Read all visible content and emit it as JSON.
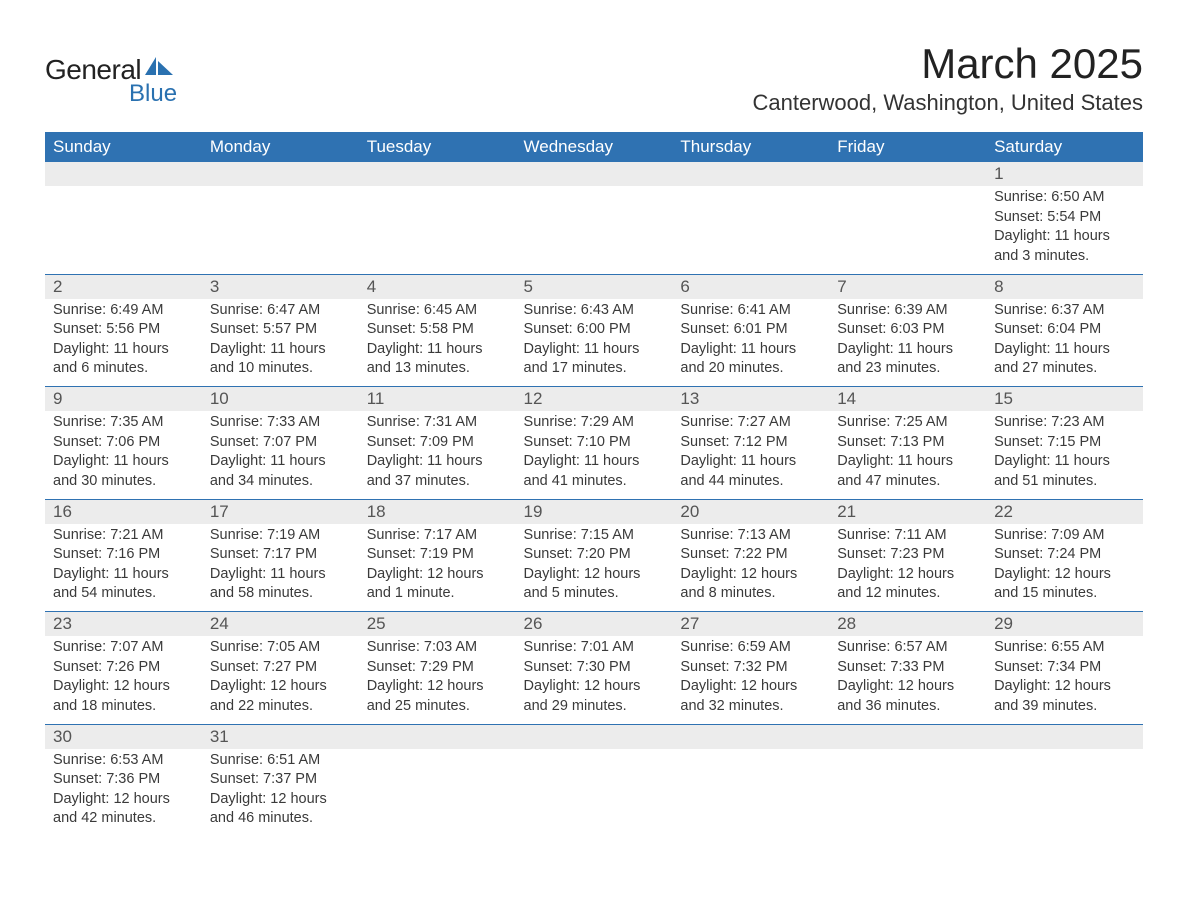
{
  "logo": {
    "text1": "General",
    "text2": "Blue",
    "shape_color": "#2a71b0"
  },
  "title": "March 2025",
  "location": "Canterwood, Washington, United States",
  "theme": {
    "header_bg": "#2f72b2",
    "header_text": "#ffffff",
    "daynum_bg": "#ececec",
    "border": "#2f72b2"
  },
  "weekdays": [
    "Sunday",
    "Monday",
    "Tuesday",
    "Wednesday",
    "Thursday",
    "Friday",
    "Saturday"
  ],
  "weeks": [
    [
      null,
      null,
      null,
      null,
      null,
      null,
      {
        "n": "1",
        "sr": "Sunrise: 6:50 AM",
        "ss": "Sunset: 5:54 PM",
        "d1": "Daylight: 11 hours",
        "d2": "and 3 minutes."
      }
    ],
    [
      {
        "n": "2",
        "sr": "Sunrise: 6:49 AM",
        "ss": "Sunset: 5:56 PM",
        "d1": "Daylight: 11 hours",
        "d2": "and 6 minutes."
      },
      {
        "n": "3",
        "sr": "Sunrise: 6:47 AM",
        "ss": "Sunset: 5:57 PM",
        "d1": "Daylight: 11 hours",
        "d2": "and 10 minutes."
      },
      {
        "n": "4",
        "sr": "Sunrise: 6:45 AM",
        "ss": "Sunset: 5:58 PM",
        "d1": "Daylight: 11 hours",
        "d2": "and 13 minutes."
      },
      {
        "n": "5",
        "sr": "Sunrise: 6:43 AM",
        "ss": "Sunset: 6:00 PM",
        "d1": "Daylight: 11 hours",
        "d2": "and 17 minutes."
      },
      {
        "n": "6",
        "sr": "Sunrise: 6:41 AM",
        "ss": "Sunset: 6:01 PM",
        "d1": "Daylight: 11 hours",
        "d2": "and 20 minutes."
      },
      {
        "n": "7",
        "sr": "Sunrise: 6:39 AM",
        "ss": "Sunset: 6:03 PM",
        "d1": "Daylight: 11 hours",
        "d2": "and 23 minutes."
      },
      {
        "n": "8",
        "sr": "Sunrise: 6:37 AM",
        "ss": "Sunset: 6:04 PM",
        "d1": "Daylight: 11 hours",
        "d2": "and 27 minutes."
      }
    ],
    [
      {
        "n": "9",
        "sr": "Sunrise: 7:35 AM",
        "ss": "Sunset: 7:06 PM",
        "d1": "Daylight: 11 hours",
        "d2": "and 30 minutes."
      },
      {
        "n": "10",
        "sr": "Sunrise: 7:33 AM",
        "ss": "Sunset: 7:07 PM",
        "d1": "Daylight: 11 hours",
        "d2": "and 34 minutes."
      },
      {
        "n": "11",
        "sr": "Sunrise: 7:31 AM",
        "ss": "Sunset: 7:09 PM",
        "d1": "Daylight: 11 hours",
        "d2": "and 37 minutes."
      },
      {
        "n": "12",
        "sr": "Sunrise: 7:29 AM",
        "ss": "Sunset: 7:10 PM",
        "d1": "Daylight: 11 hours",
        "d2": "and 41 minutes."
      },
      {
        "n": "13",
        "sr": "Sunrise: 7:27 AM",
        "ss": "Sunset: 7:12 PM",
        "d1": "Daylight: 11 hours",
        "d2": "and 44 minutes."
      },
      {
        "n": "14",
        "sr": "Sunrise: 7:25 AM",
        "ss": "Sunset: 7:13 PM",
        "d1": "Daylight: 11 hours",
        "d2": "and 47 minutes."
      },
      {
        "n": "15",
        "sr": "Sunrise: 7:23 AM",
        "ss": "Sunset: 7:15 PM",
        "d1": "Daylight: 11 hours",
        "d2": "and 51 minutes."
      }
    ],
    [
      {
        "n": "16",
        "sr": "Sunrise: 7:21 AM",
        "ss": "Sunset: 7:16 PM",
        "d1": "Daylight: 11 hours",
        "d2": "and 54 minutes."
      },
      {
        "n": "17",
        "sr": "Sunrise: 7:19 AM",
        "ss": "Sunset: 7:17 PM",
        "d1": "Daylight: 11 hours",
        "d2": "and 58 minutes."
      },
      {
        "n": "18",
        "sr": "Sunrise: 7:17 AM",
        "ss": "Sunset: 7:19 PM",
        "d1": "Daylight: 12 hours",
        "d2": "and 1 minute."
      },
      {
        "n": "19",
        "sr": "Sunrise: 7:15 AM",
        "ss": "Sunset: 7:20 PM",
        "d1": "Daylight: 12 hours",
        "d2": "and 5 minutes."
      },
      {
        "n": "20",
        "sr": "Sunrise: 7:13 AM",
        "ss": "Sunset: 7:22 PM",
        "d1": "Daylight: 12 hours",
        "d2": "and 8 minutes."
      },
      {
        "n": "21",
        "sr": "Sunrise: 7:11 AM",
        "ss": "Sunset: 7:23 PM",
        "d1": "Daylight: 12 hours",
        "d2": "and 12 minutes."
      },
      {
        "n": "22",
        "sr": "Sunrise: 7:09 AM",
        "ss": "Sunset: 7:24 PM",
        "d1": "Daylight: 12 hours",
        "d2": "and 15 minutes."
      }
    ],
    [
      {
        "n": "23",
        "sr": "Sunrise: 7:07 AM",
        "ss": "Sunset: 7:26 PM",
        "d1": "Daylight: 12 hours",
        "d2": "and 18 minutes."
      },
      {
        "n": "24",
        "sr": "Sunrise: 7:05 AM",
        "ss": "Sunset: 7:27 PM",
        "d1": "Daylight: 12 hours",
        "d2": "and 22 minutes."
      },
      {
        "n": "25",
        "sr": "Sunrise: 7:03 AM",
        "ss": "Sunset: 7:29 PM",
        "d1": "Daylight: 12 hours",
        "d2": "and 25 minutes."
      },
      {
        "n": "26",
        "sr": "Sunrise: 7:01 AM",
        "ss": "Sunset: 7:30 PM",
        "d1": "Daylight: 12 hours",
        "d2": "and 29 minutes."
      },
      {
        "n": "27",
        "sr": "Sunrise: 6:59 AM",
        "ss": "Sunset: 7:32 PM",
        "d1": "Daylight: 12 hours",
        "d2": "and 32 minutes."
      },
      {
        "n": "28",
        "sr": "Sunrise: 6:57 AM",
        "ss": "Sunset: 7:33 PM",
        "d1": "Daylight: 12 hours",
        "d2": "and 36 minutes."
      },
      {
        "n": "29",
        "sr": "Sunrise: 6:55 AM",
        "ss": "Sunset: 7:34 PM",
        "d1": "Daylight: 12 hours",
        "d2": "and 39 minutes."
      }
    ],
    [
      {
        "n": "30",
        "sr": "Sunrise: 6:53 AM",
        "ss": "Sunset: 7:36 PM",
        "d1": "Daylight: 12 hours",
        "d2": "and 42 minutes."
      },
      {
        "n": "31",
        "sr": "Sunrise: 6:51 AM",
        "ss": "Sunset: 7:37 PM",
        "d1": "Daylight: 12 hours",
        "d2": "and 46 minutes."
      },
      null,
      null,
      null,
      null,
      null
    ]
  ]
}
